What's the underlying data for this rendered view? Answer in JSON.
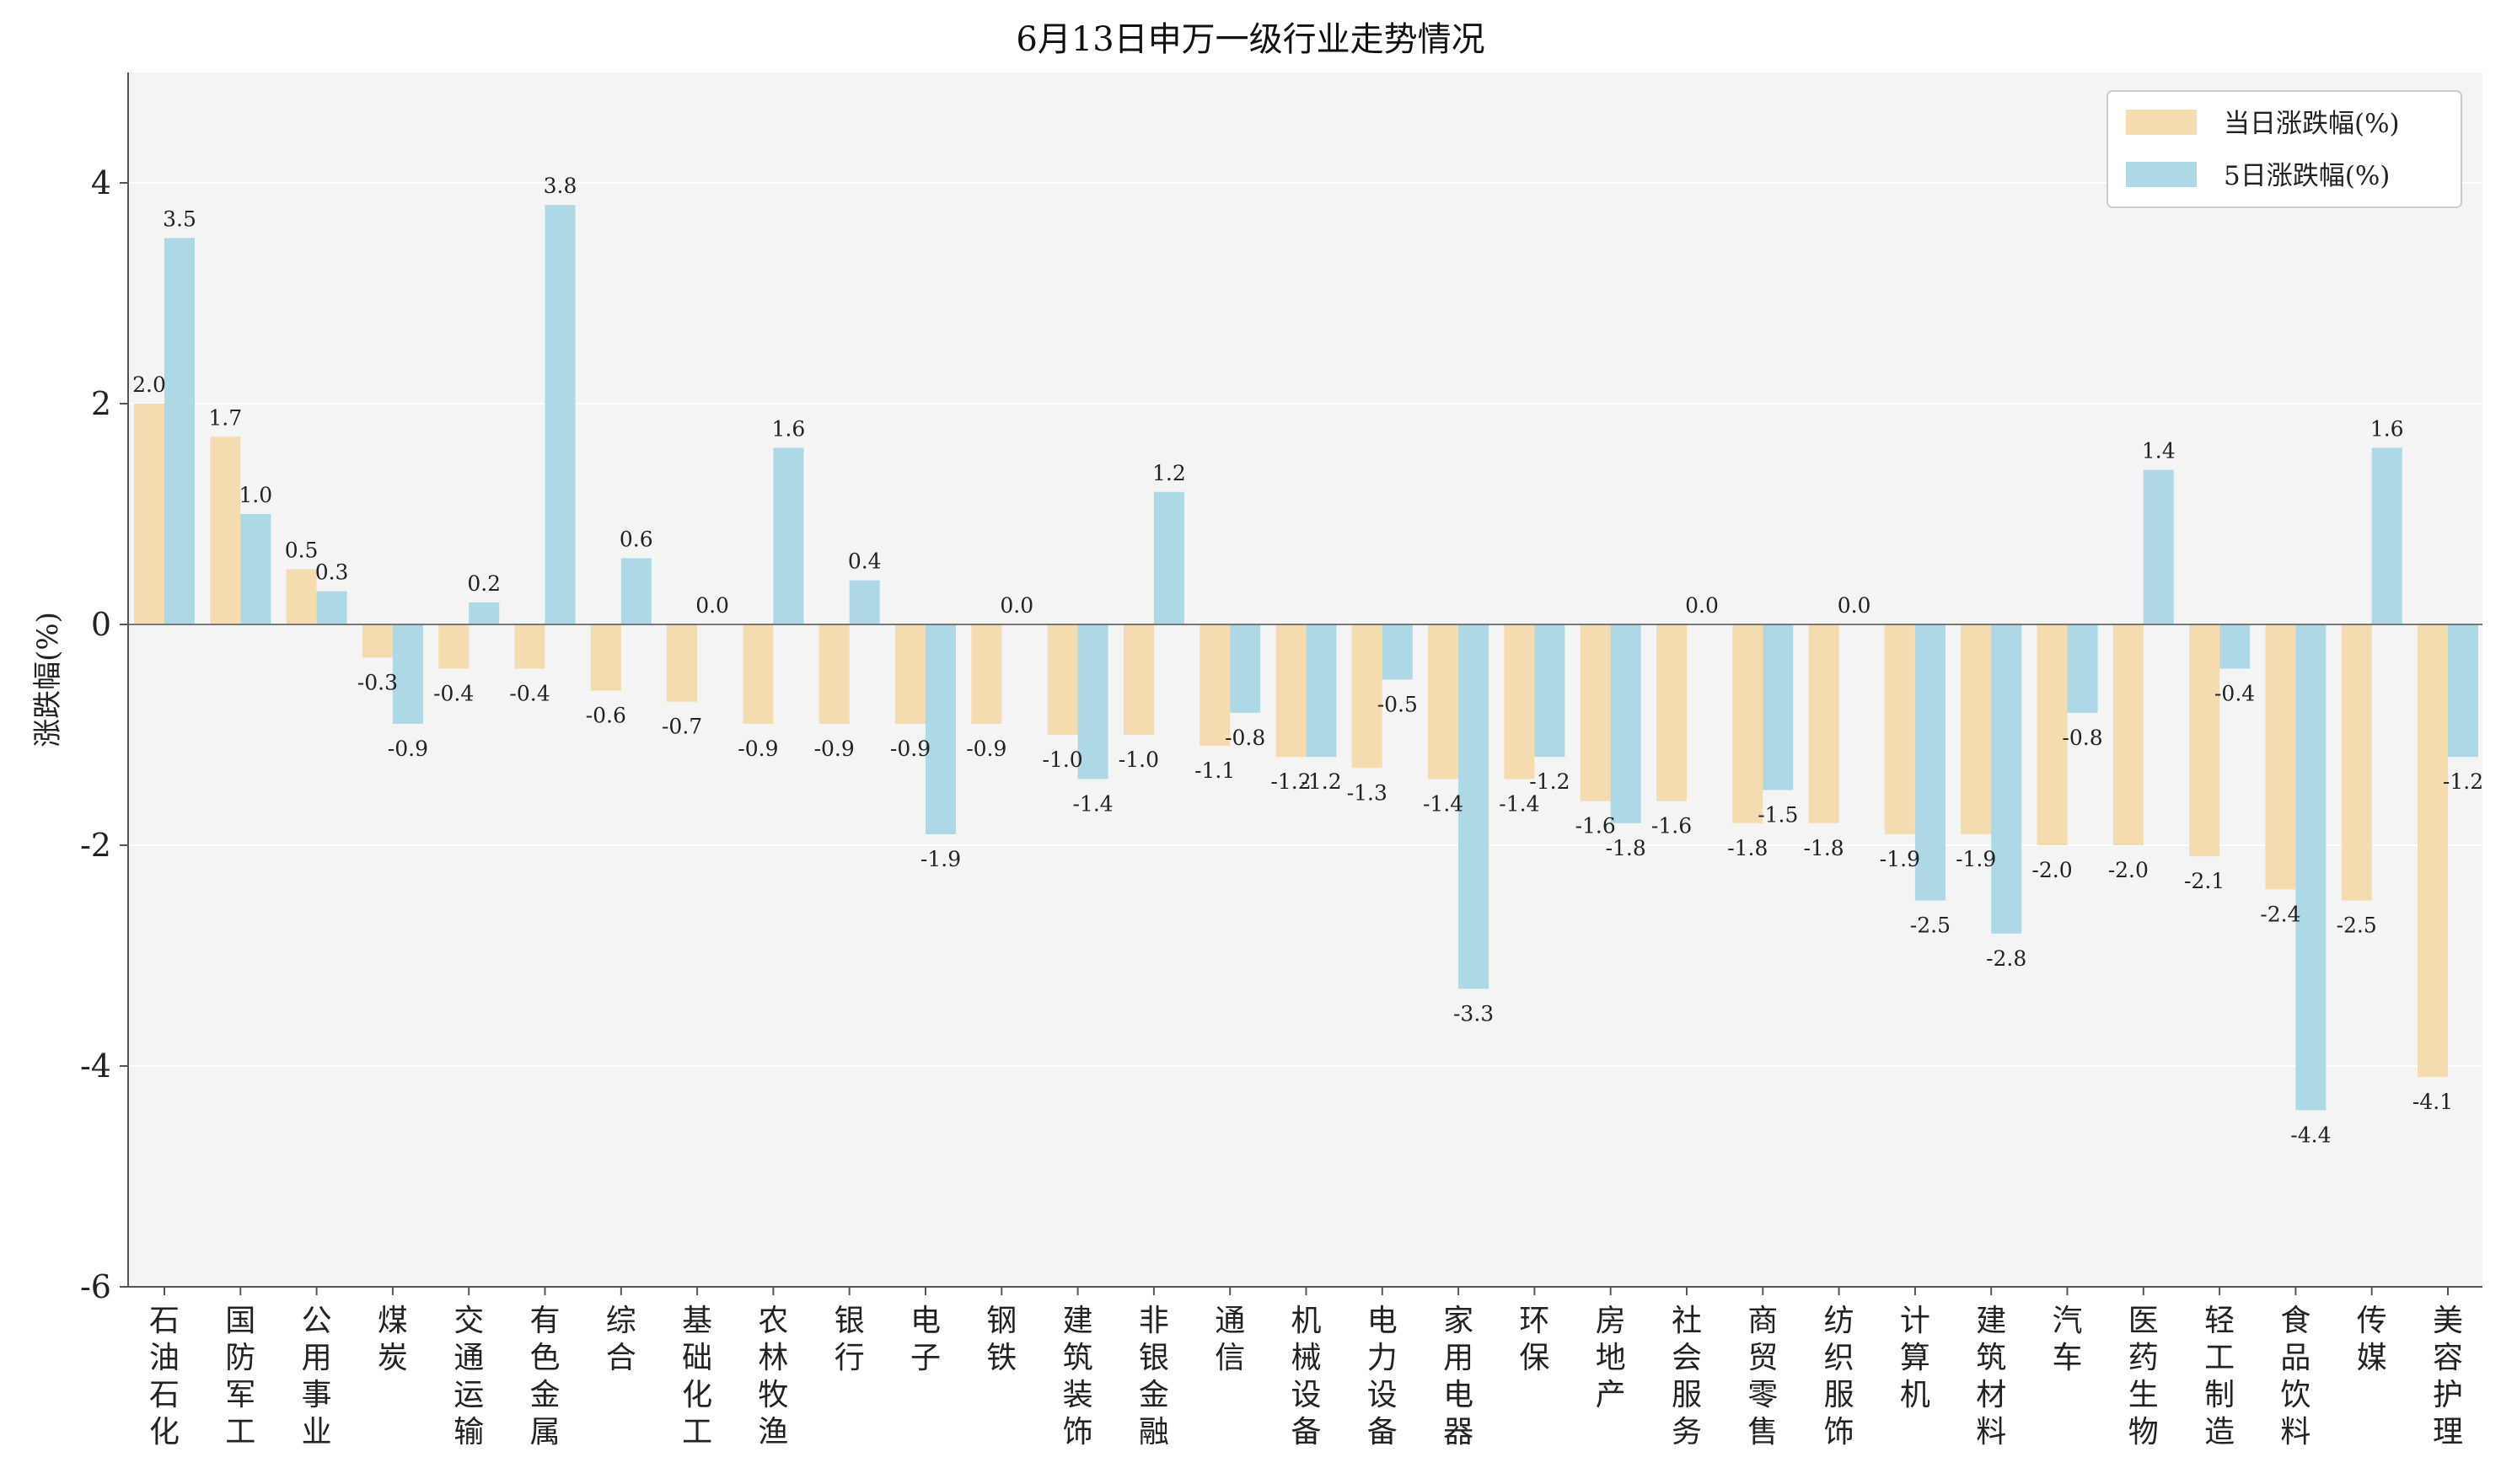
{
  "chart_data": {
    "type": "bar",
    "title": "6月13日申万一级行业走势情况",
    "ylabel": "涨跌幅(%)",
    "xlabel": "",
    "ylim": [
      -6,
      5
    ],
    "yticks": [
      -6,
      -4,
      -2,
      0,
      2,
      4
    ],
    "grid": "horizontal",
    "legend_position": "top-right",
    "categories": [
      "石油石化",
      "国防军工",
      "公用事业",
      "煤炭",
      "交通运输",
      "有色金属",
      "综合",
      "基础化工",
      "农林牧渔",
      "银行",
      "电子",
      "钢铁",
      "建筑装饰",
      "非银金融",
      "通信",
      "机械设备",
      "电力设备",
      "家用电器",
      "环保",
      "房地产",
      "社会服务",
      "商贸零售",
      "纺织服饰",
      "计算机",
      "建筑材料",
      "汽车",
      "医药生物",
      "轻工制造",
      "食品饮料",
      "传媒",
      "美容护理"
    ],
    "series": [
      {
        "name": "当日涨跌幅(%)",
        "color": "#f5dcb0",
        "values": [
          2.0,
          1.7,
          0.5,
          -0.3,
          -0.4,
          -0.4,
          -0.6,
          -0.7,
          -0.9,
          -0.9,
          -0.9,
          -0.9,
          -1.0,
          -1.0,
          -1.1,
          -1.2,
          -1.3,
          -1.4,
          -1.4,
          -1.6,
          -1.6,
          -1.8,
          -1.8,
          -1.9,
          -1.9,
          -2.0,
          -2.0,
          -2.1,
          -2.4,
          -2.5,
          -4.1
        ]
      },
      {
        "name": "5日涨跌幅(%)",
        "color": "#add8e6",
        "values": [
          3.5,
          1.0,
          0.3,
          -0.9,
          0.2,
          3.8,
          0.6,
          0.0,
          1.6,
          0.4,
          -1.9,
          0.0,
          -1.4,
          1.2,
          -0.8,
          -1.2,
          -0.5,
          -3.3,
          -1.2,
          -1.8,
          0.0,
          -1.5,
          0.0,
          -2.5,
          -2.8,
          -0.8,
          1.4,
          -0.4,
          -4.4,
          1.6,
          -1.2
        ]
      }
    ],
    "colors": {
      "plot_background": "#f4f4f4",
      "axis": "#555555",
      "zero_line": "#777777"
    }
  }
}
